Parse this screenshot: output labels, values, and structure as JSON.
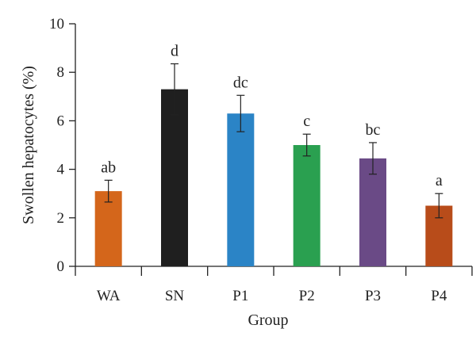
{
  "chart_data": {
    "type": "bar",
    "title": "",
    "xlabel": "Group",
    "ylabel": "Swollen hepatocytes (%)",
    "ylim": [
      0,
      10
    ],
    "yticks": [
      0,
      2,
      4,
      6,
      8,
      10
    ],
    "grid": false,
    "legend": "none",
    "categories": [
      "WA",
      "SN",
      "P1",
      "P2",
      "P3",
      "P4"
    ],
    "values": [
      3.1,
      7.3,
      6.3,
      5.0,
      4.45,
      2.5
    ],
    "errors": [
      0.45,
      1.05,
      0.75,
      0.45,
      0.65,
      0.5
    ],
    "significance_labels": [
      "ab",
      "d",
      "dc",
      "c",
      "bc",
      "a"
    ],
    "colors": [
      "#d4661b",
      "#1f1f1f",
      "#2b84c6",
      "#2aa050",
      "#6a4a86",
      "#b84c1a"
    ]
  }
}
